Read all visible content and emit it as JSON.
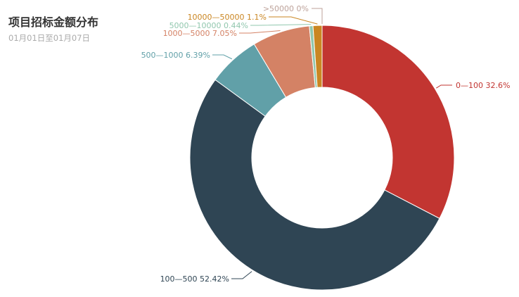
{
  "chart_data": {
    "type": "pie",
    "title": "项目招标金额分布",
    "subtitle": "01月01日至01月07日",
    "slices": [
      {
        "name": "0—100",
        "value": 32.6,
        "label": "0—100 32.6%",
        "color": "#c23531"
      },
      {
        "name": "100—500",
        "value": 52.42,
        "label": "100—500 52.42%",
        "color": "#2f4554"
      },
      {
        "name": "500—1000",
        "value": 6.39,
        "label": "500—1000 6.39%",
        "color": "#61a0a8"
      },
      {
        "name": "1000—5000",
        "value": 7.05,
        "label": "1000—5000 7.05%",
        "color": "#d48265"
      },
      {
        "name": "5000—10000",
        "value": 0.44,
        "label": "5000—10000 0.44%",
        "color": "#91c7ae"
      },
      {
        "name": "10000—50000",
        "value": 1.1,
        "label": "10000—50000 1.1%",
        "color": "#ca8622"
      },
      {
        "name": ">50000",
        "value": 0,
        "label": ">50000 0%",
        "color": "#bda29a"
      }
    ]
  }
}
